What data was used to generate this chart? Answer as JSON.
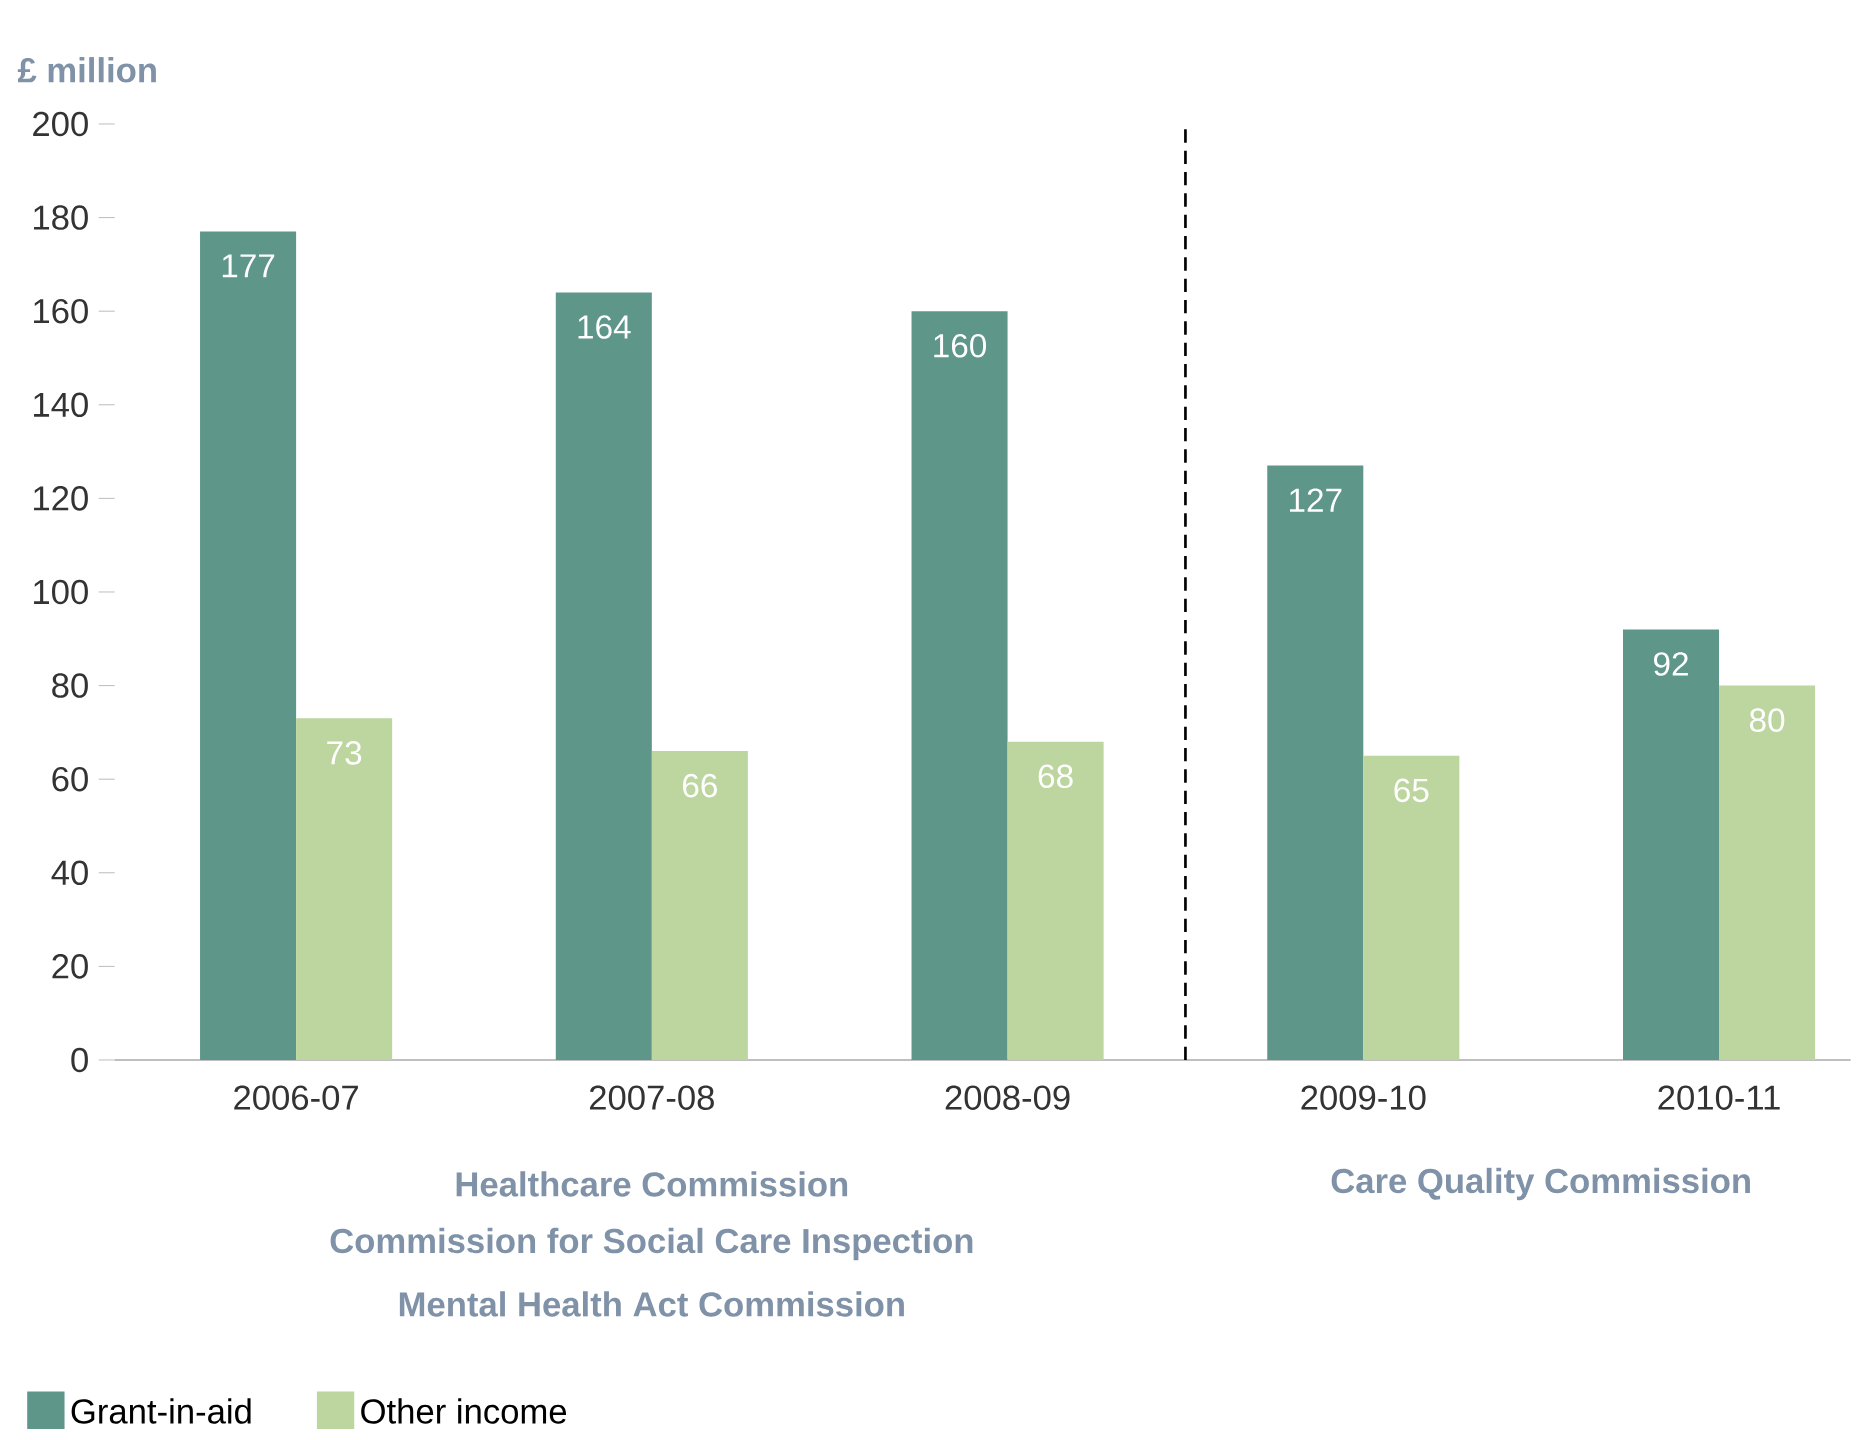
{
  "chart_data": {
    "type": "bar",
    "ylabel": "£ million",
    "categories": [
      "2006-07",
      "2007-08",
      "2008-09",
      "2009-10",
      "2010-11"
    ],
    "series": [
      {
        "name": "Grant-in-aid",
        "color": "#5e968a",
        "values": [
          177,
          164,
          160,
          127,
          92
        ]
      },
      {
        "name": "Other income",
        "color": "#bdd6a0",
        "values": [
          73,
          66,
          68,
          65,
          80
        ]
      }
    ],
    "ylim": [
      0,
      200
    ],
    "yticks": [
      0,
      20,
      40,
      60,
      80,
      100,
      120,
      140,
      160,
      180,
      200
    ],
    "annotations": [
      "Healthcare Commission",
      "Commission for Social Care Inspection",
      "Mental Health Act Commission",
      "Care Quality Commission"
    ],
    "data_labels": true,
    "legend": "bottom left",
    "grid": false
  }
}
